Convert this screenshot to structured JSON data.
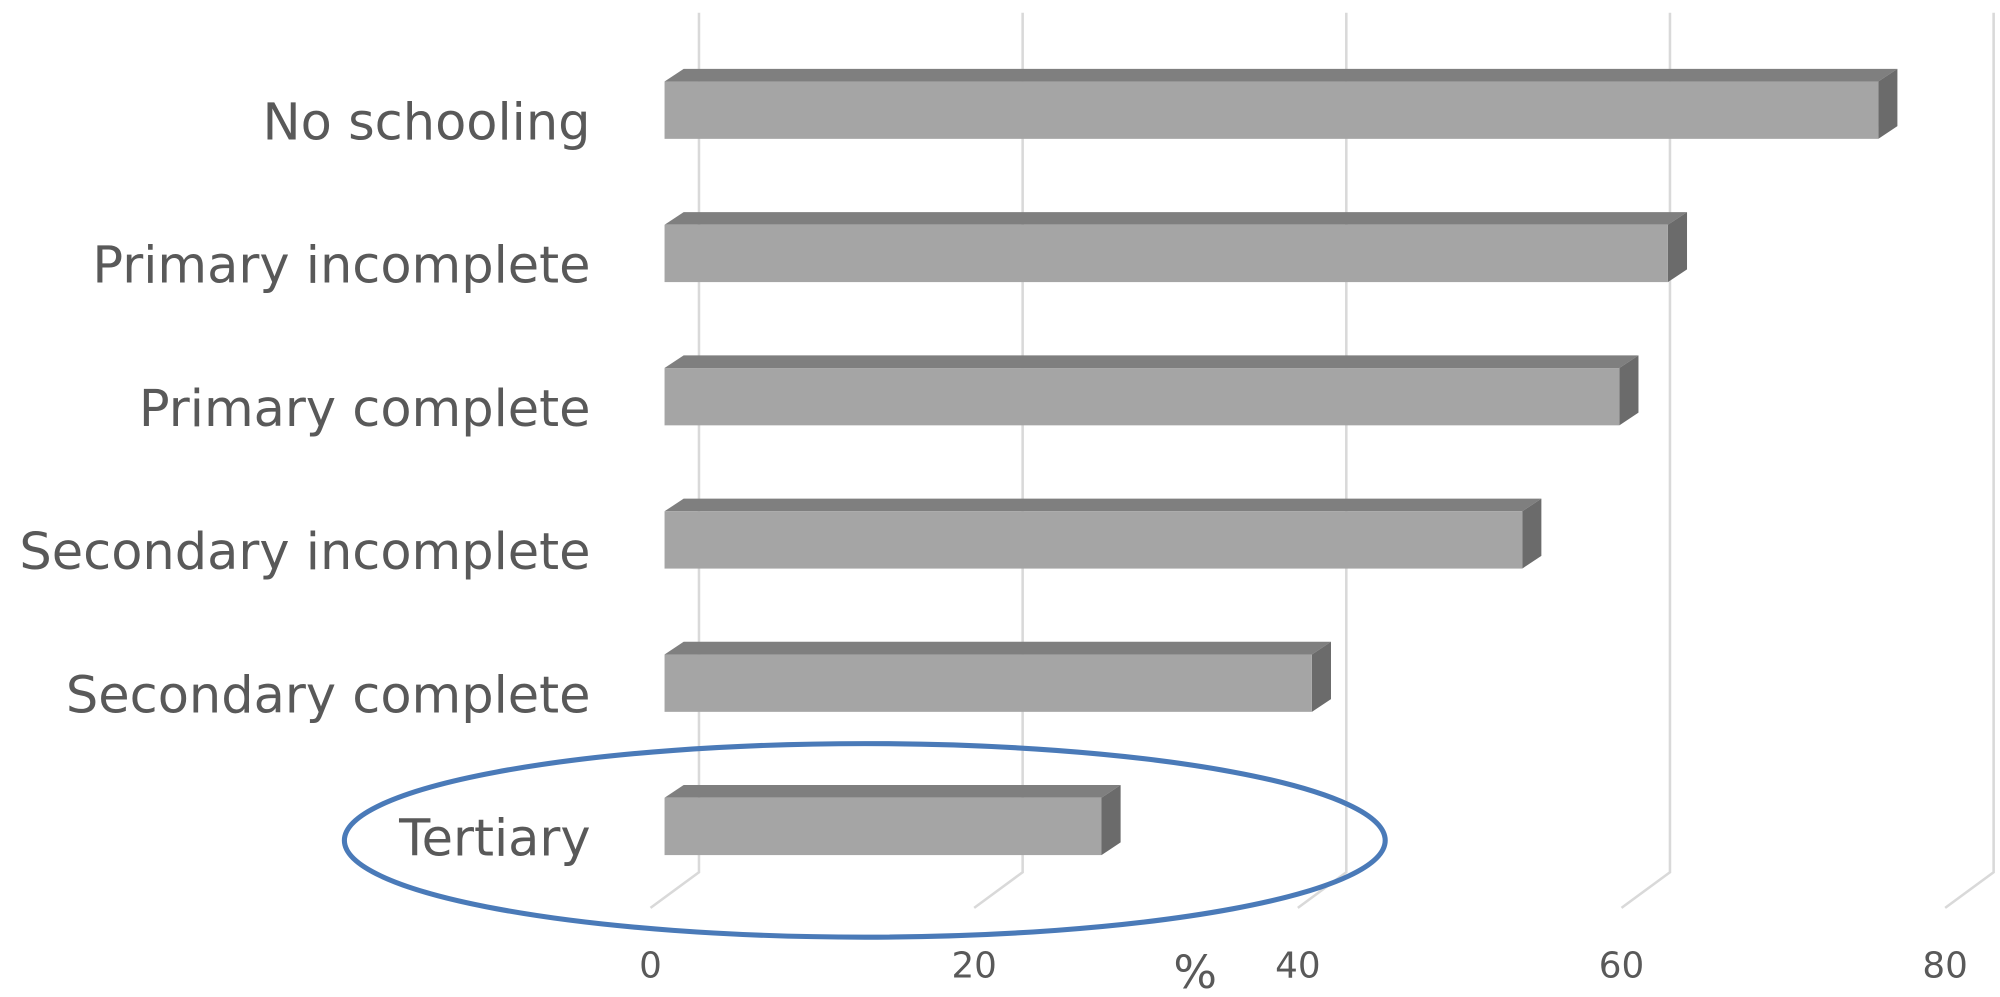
{
  "chart_data": {
    "type": "bar",
    "orientation": "horizontal",
    "categories": [
      "No schooling",
      "Primary incomplete",
      "Primary complete",
      "Secondary incomplete",
      "Secondary complete",
      "Tertiary"
    ],
    "values": [
      75,
      62,
      59,
      53,
      40,
      27
    ],
    "color": "#a5a5a5",
    "x_label": "%",
    "xlim": [
      0,
      80
    ],
    "xticks": [
      0,
      20,
      40,
      60,
      80
    ],
    "grid": true
  }
}
